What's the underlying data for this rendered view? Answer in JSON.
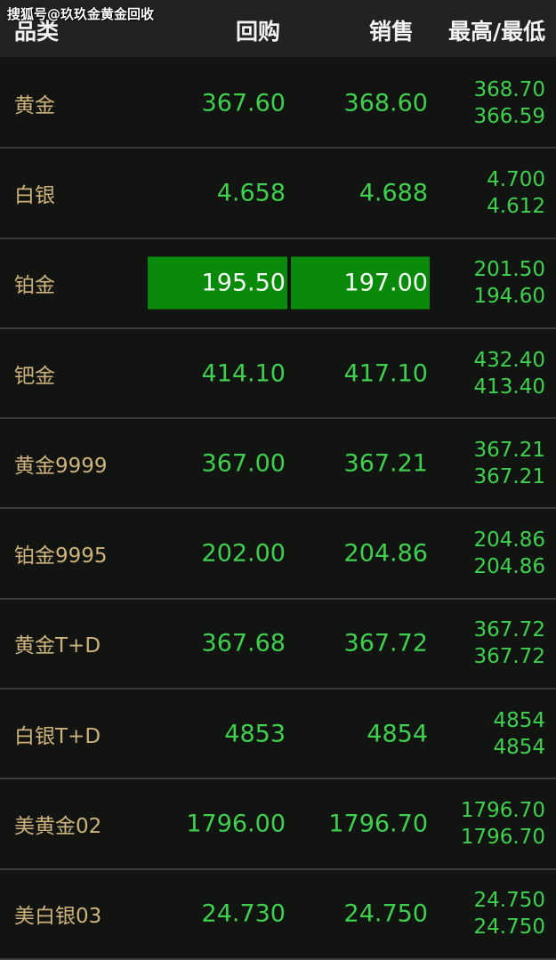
{
  "watermark": "搜狐号@玖玖金黄金回收",
  "header": {
    "category": "品类",
    "buy": "回购",
    "sell": "销售",
    "high_low": "最高/最低"
  },
  "colors": {
    "name": "#cdb27c",
    "value": "#3fcf4f",
    "highlight": "#0a8a0a"
  },
  "rows": [
    {
      "name": "黄金",
      "buy": "367.60",
      "sell": "368.60",
      "high": "368.70",
      "low": "366.59",
      "highlighted": false
    },
    {
      "name": "白银",
      "buy": "4.658",
      "sell": "4.688",
      "high": "4.700",
      "low": "4.612",
      "highlighted": false
    },
    {
      "name": "铂金",
      "buy": "195.50",
      "sell": "197.00",
      "high": "201.50",
      "low": "194.60",
      "highlighted": true
    },
    {
      "name": "钯金",
      "buy": "414.10",
      "sell": "417.10",
      "high": "432.40",
      "low": "413.40",
      "highlighted": false
    },
    {
      "name": "黄金9999",
      "buy": "367.00",
      "sell": "367.21",
      "high": "367.21",
      "low": "367.21",
      "highlighted": false
    },
    {
      "name": "铂金9995",
      "buy": "202.00",
      "sell": "204.86",
      "high": "204.86",
      "low": "204.86",
      "highlighted": false
    },
    {
      "name": "黄金T+D",
      "buy": "367.68",
      "sell": "367.72",
      "high": "367.72",
      "low": "367.72",
      "highlighted": false
    },
    {
      "name": "白银T+D",
      "buy": "4853",
      "sell": "4854",
      "high": "4854",
      "low": "4854",
      "highlighted": false
    },
    {
      "name": "美黄金02",
      "buy": "1796.00",
      "sell": "1796.70",
      "high": "1796.70",
      "low": "1796.70",
      "highlighted": false
    },
    {
      "name": "美白银03",
      "buy": "24.730",
      "sell": "24.750",
      "high": "24.750",
      "low": "24.750",
      "highlighted": false
    }
  ]
}
